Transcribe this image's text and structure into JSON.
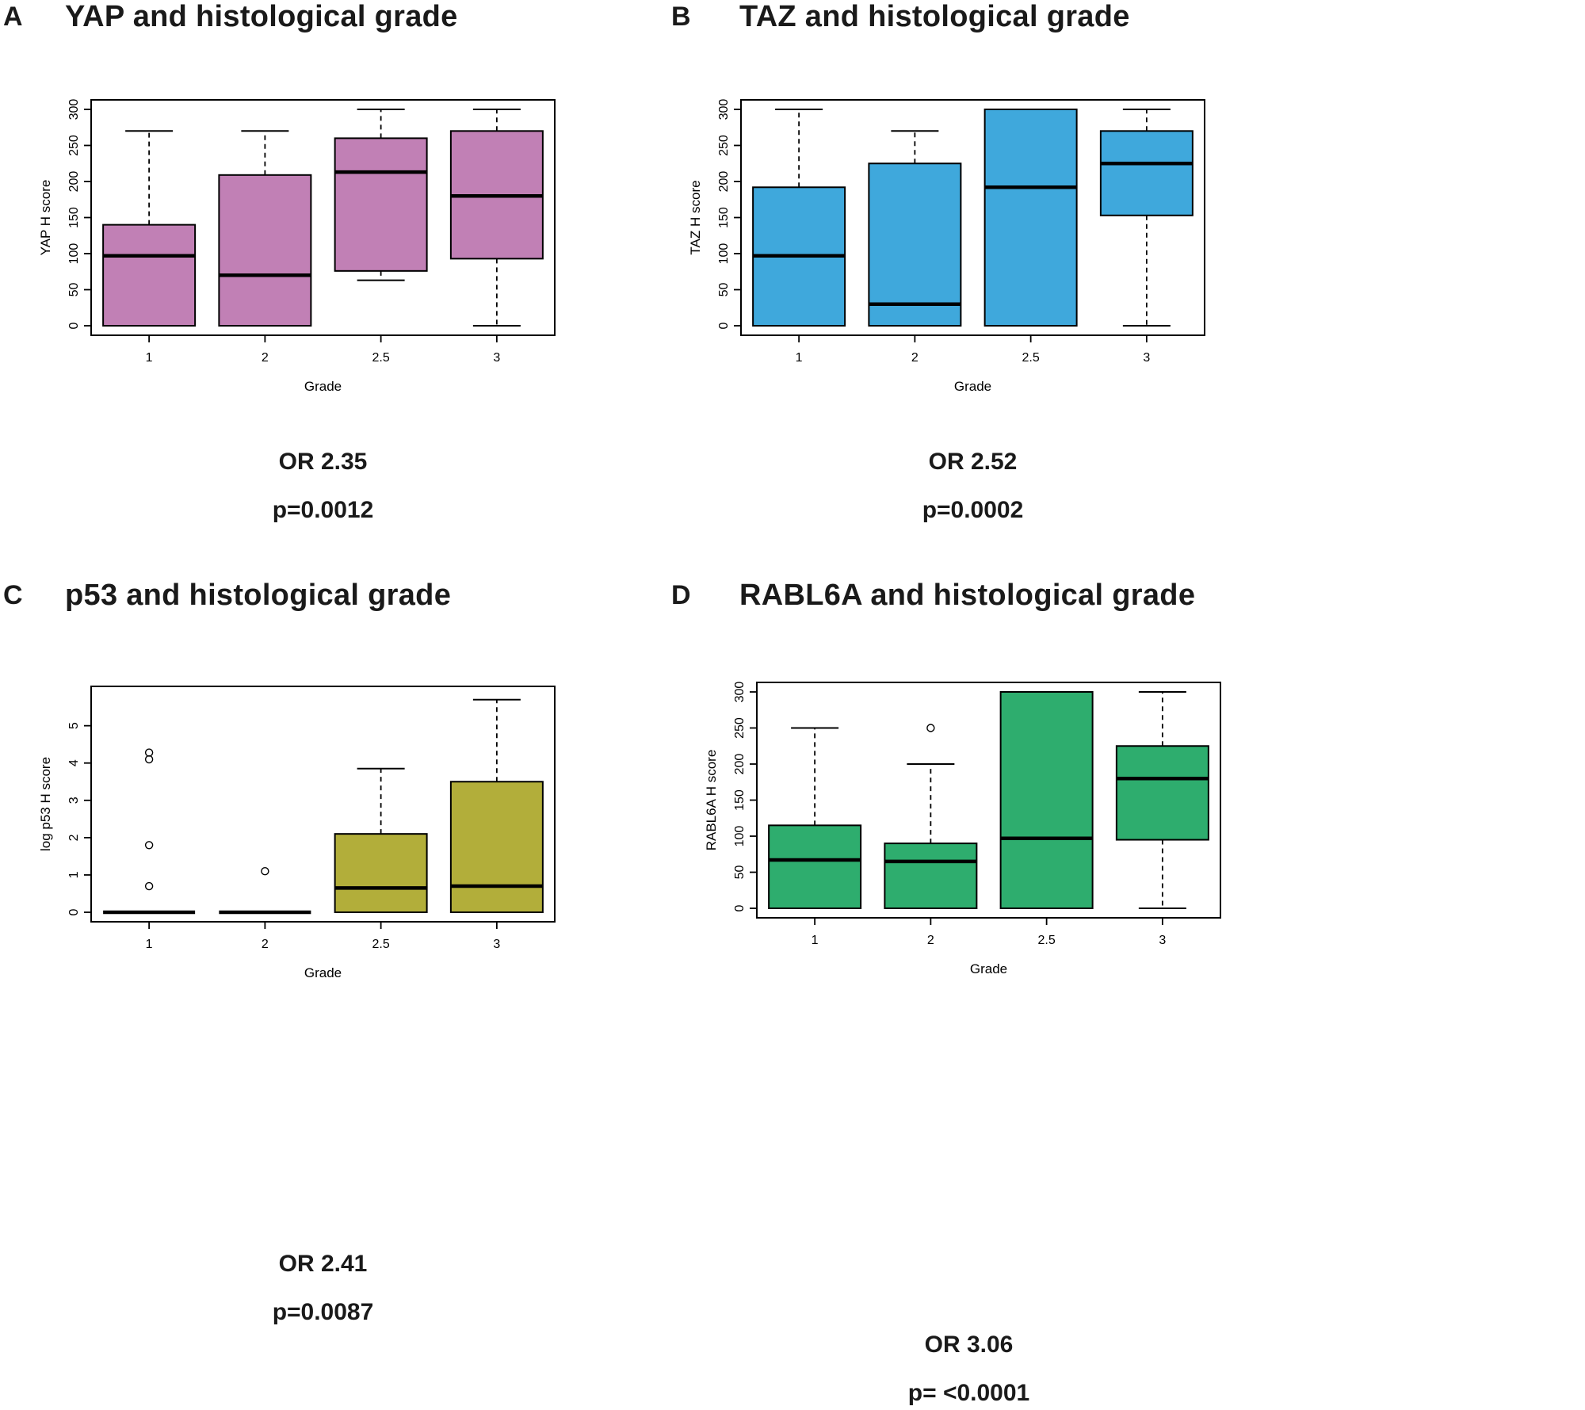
{
  "figure": {
    "background_color": "#ffffff",
    "text_color": "#1a1a1a"
  },
  "chart_data": [
    {
      "type": "box",
      "panel_letter": "A",
      "title": "YAP and histological grade",
      "xlabel": "Grade",
      "ylabel": "YAP H score",
      "categories": [
        "1",
        "2",
        "2.5",
        "3"
      ],
      "ylim": [
        0,
        300
      ],
      "yticks": [
        0,
        50,
        100,
        150,
        200,
        250,
        300
      ],
      "box_color": "#c180b5",
      "boxes": [
        {
          "category": "1",
          "whisker_low": 0,
          "q1": 0,
          "median": 97,
          "q3": 140,
          "whisker_high": 270,
          "outliers": []
        },
        {
          "category": "2",
          "whisker_low": 0,
          "q1": 0,
          "median": 70,
          "q3": 209,
          "whisker_high": 270,
          "outliers": []
        },
        {
          "category": "2.5",
          "whisker_low": 63,
          "q1": 76,
          "median": 213,
          "q3": 260,
          "whisker_high": 300,
          "outliers": []
        },
        {
          "category": "3",
          "whisker_low": 0,
          "q1": 93,
          "median": 180,
          "q3": 270,
          "whisker_high": 300,
          "outliers": []
        }
      ],
      "stats": {
        "or": "OR 2.35",
        "p": "p=0.0012"
      }
    },
    {
      "type": "box",
      "panel_letter": "B",
      "title": "TAZ and histological grade",
      "xlabel": "Grade",
      "ylabel": "TAZ H score",
      "categories": [
        "1",
        "2",
        "2.5",
        "3"
      ],
      "ylim": [
        0,
        300
      ],
      "yticks": [
        0,
        50,
        100,
        150,
        200,
        250,
        300
      ],
      "box_color": "#3fa8dc",
      "boxes": [
        {
          "category": "1",
          "whisker_low": 0,
          "q1": 0,
          "median": 97,
          "q3": 192,
          "whisker_high": 300,
          "outliers": []
        },
        {
          "category": "2",
          "whisker_low": 0,
          "q1": 0,
          "median": 30,
          "q3": 225,
          "whisker_high": 270,
          "outliers": []
        },
        {
          "category": "2.5",
          "whisker_low": 0,
          "q1": 0,
          "median": 192,
          "q3": 300,
          "whisker_high": 300,
          "outliers": []
        },
        {
          "category": "3",
          "whisker_low": 0,
          "q1": 153,
          "median": 225,
          "q3": 270,
          "whisker_high": 300,
          "outliers": []
        }
      ],
      "stats": {
        "or": "OR 2.52",
        "p": "p=0.0002"
      }
    },
    {
      "type": "box",
      "panel_letter": "C",
      "title": "p53 and histological grade",
      "xlabel": "Grade",
      "ylabel": "log p53 H score",
      "categories": [
        "1",
        "2",
        "2.5",
        "3"
      ],
      "ylim": [
        0,
        5.8
      ],
      "yticks": [
        0,
        1,
        2,
        3,
        4,
        5
      ],
      "box_color": "#b2ae3a",
      "boxes": [
        {
          "category": "1",
          "whisker_low": 0,
          "q1": 0,
          "median": 0,
          "q3": 0,
          "whisker_high": 0,
          "outliers": [
            0.7,
            1.8,
            4.1,
            4.28
          ]
        },
        {
          "category": "2",
          "whisker_low": 0,
          "q1": 0,
          "median": 0,
          "q3": 0,
          "whisker_high": 0,
          "outliers": [
            1.1
          ]
        },
        {
          "category": "2.5",
          "whisker_low": 0,
          "q1": 0,
          "median": 0.65,
          "q3": 2.1,
          "whisker_high": 3.85,
          "outliers": []
        },
        {
          "category": "3",
          "whisker_low": 0,
          "q1": 0,
          "median": 0.7,
          "q3": 3.5,
          "whisker_high": 5.7,
          "outliers": []
        }
      ],
      "stats": {
        "or": "OR 2.41",
        "p": "p=0.0087"
      }
    },
    {
      "type": "box",
      "panel_letter": "D",
      "title": "RABL6A and histological grade",
      "xlabel": "Grade",
      "ylabel": "RABL6A H score",
      "categories": [
        "1",
        "2",
        "2.5",
        "3"
      ],
      "ylim": [
        0,
        300
      ],
      "yticks": [
        0,
        50,
        100,
        150,
        200,
        250,
        300
      ],
      "box_color": "#2ead6e",
      "boxes": [
        {
          "category": "1",
          "whisker_low": 0,
          "q1": 0,
          "median": 67,
          "q3": 115,
          "whisker_high": 250,
          "outliers": []
        },
        {
          "category": "2",
          "whisker_low": 0,
          "q1": 0,
          "median": 65,
          "q3": 90,
          "whisker_high": 200,
          "outliers": [
            250
          ]
        },
        {
          "category": "2.5",
          "whisker_low": 0,
          "q1": 0,
          "median": 97,
          "q3": 300,
          "whisker_high": 300,
          "outliers": []
        },
        {
          "category": "3",
          "whisker_low": 0,
          "q1": 95,
          "median": 180,
          "q3": 225,
          "whisker_high": 300,
          "outliers": []
        }
      ],
      "stats": {
        "or": "OR 3.06",
        "p": "p= <0.0001"
      }
    }
  ]
}
